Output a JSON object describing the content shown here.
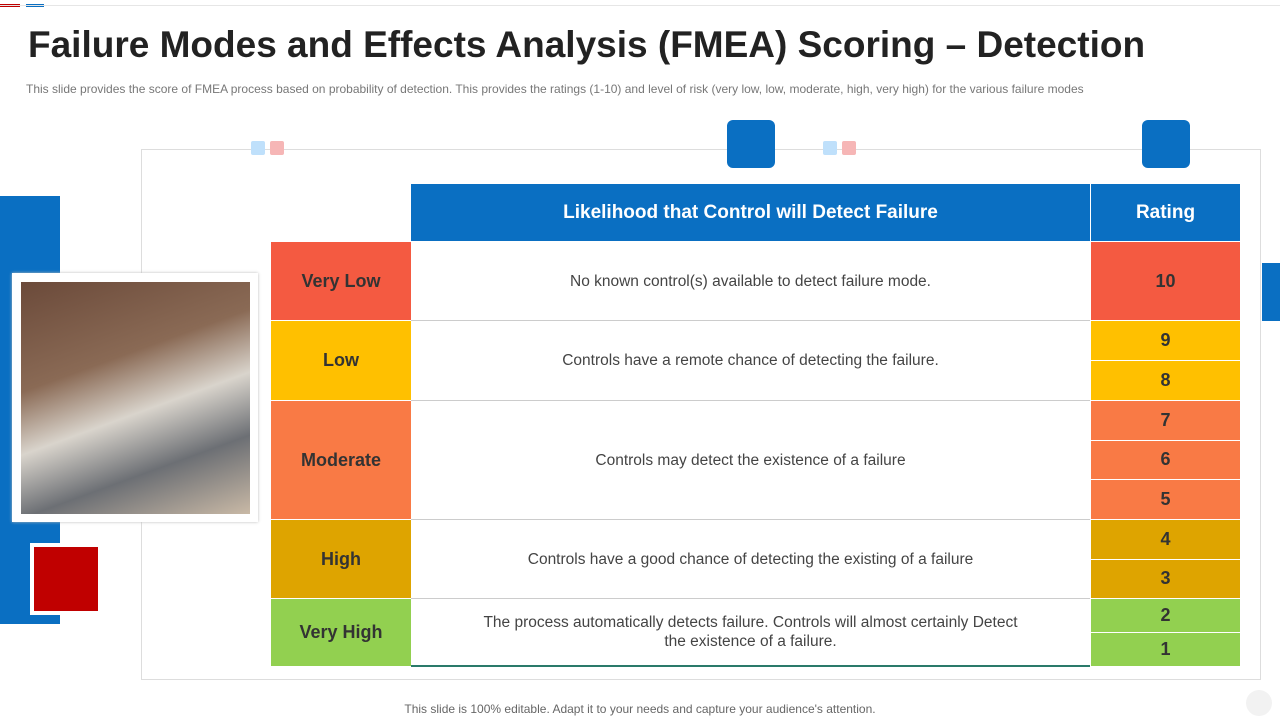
{
  "header": {
    "title": "Failure Modes and Effects Analysis (FMEA) Scoring – Detection",
    "subtitle": "This slide provides  the score of FMEA process based on probability of detection. This provides  the ratings (1-10)  and level  of risk (very  low, low, moderate,  high, very  high) for the various  failure  modes"
  },
  "table": {
    "columns": [
      "Likelihood that Control will Detect Failure",
      "Rating"
    ],
    "rows": [
      {
        "level": "Very Low",
        "description": "No known control(s) available to detect failure mode.",
        "ratings": [
          10
        ]
      },
      {
        "level": "Low",
        "description": "Controls have a remote chance of detecting the failure.",
        "ratings": [
          9,
          8
        ]
      },
      {
        "level": "Moderate",
        "description": "Controls may detect the existence of a failure",
        "ratings": [
          7,
          6,
          5
        ]
      },
      {
        "level": "High",
        "description": "Controls have a good chance of detecting the existing of a failure",
        "ratings": [
          4,
          3
        ]
      },
      {
        "level": "Very High",
        "description": "The process automatically detects failure. Controls will almost certainly Detect the existence of a failure.",
        "ratings": [
          2,
          1
        ]
      }
    ]
  },
  "footer": "This slide is 100% editable. Adapt it to your needs and capture your audience's attention."
}
